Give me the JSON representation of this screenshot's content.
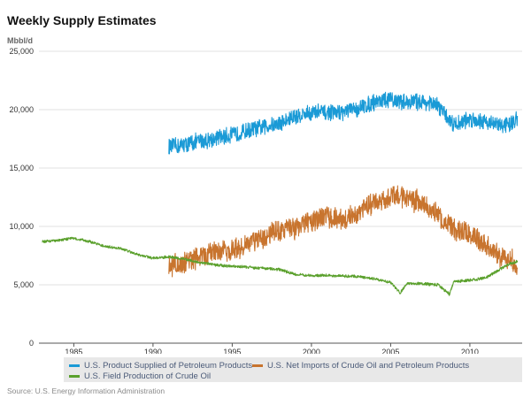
{
  "chart_data": {
    "type": "line",
    "title": "Weekly Supply Estimates",
    "ylabel": "Mbbl/d",
    "xlabel": "",
    "xlim": [
      1982.8,
      2013.3
    ],
    "ylim": [
      0,
      25000
    ],
    "x_ticks": [
      1985,
      1990,
      1995,
      2000,
      2005,
      2010
    ],
    "x_tick_labels": [
      "1985",
      "1990",
      "1995",
      "2000",
      "2005",
      "2010"
    ],
    "y_ticks": [
      0,
      5000,
      10000,
      15000,
      20000,
      25000
    ],
    "y_tick_labels": [
      "0",
      "5,000",
      "10,000",
      "15,000",
      "20,000",
      "25,000"
    ],
    "grid": true,
    "legend_position": "bottom",
    "source": "Source: U.S. Energy Information Administration",
    "series": [
      {
        "name": "U.S. Product Supplied of Petroleum Products",
        "color": "#1a9ad6",
        "noise": 650,
        "x": [
          1991.0,
          1992.0,
          1993.0,
          1994.0,
          1995.0,
          1996.0,
          1997.0,
          1998.0,
          1999.0,
          2000.0,
          2001.0,
          2002.0,
          2003.0,
          2004.0,
          2005.0,
          2006.0,
          2007.0,
          2008.0,
          2008.5,
          2009.0,
          2010.0,
          2011.0,
          2012.0,
          2012.5,
          2013.0
        ],
        "y": [
          16800,
          17000,
          17300,
          17600,
          17800,
          18200,
          18500,
          18800,
          19400,
          19800,
          19700,
          19800,
          20100,
          20700,
          20800,
          20700,
          20700,
          20300,
          19500,
          18700,
          19200,
          19000,
          18600,
          18800,
          19100
        ]
      },
      {
        "name": "U.S. Net Imports of Crude Oil and Petroleum Products",
        "color": "#c8742e",
        "noise": 850,
        "x": [
          1991.0,
          1992.0,
          1993.0,
          1994.0,
          1995.0,
          1996.0,
          1997.0,
          1998.0,
          1999.0,
          2000.0,
          2001.0,
          2002.0,
          2003.0,
          2004.0,
          2005.0,
          2006.0,
          2007.0,
          2008.0,
          2009.0,
          2010.0,
          2011.0,
          2012.0,
          2012.5,
          2013.0
        ],
        "y": [
          6500,
          6800,
          7400,
          8000,
          7900,
          8500,
          9100,
          9700,
          9900,
          10400,
          10900,
          10500,
          11200,
          12100,
          12500,
          12400,
          12000,
          11100,
          9700,
          9400,
          8400,
          7400,
          7200,
          6600
        ]
      },
      {
        "name": "U.S. Field Production of Crude Oil",
        "color": "#5aa02c",
        "noise": 110,
        "x": [
          1983.0,
          1984.0,
          1985.0,
          1986.0,
          1987.0,
          1988.0,
          1989.0,
          1990.0,
          1991.0,
          1992.0,
          1993.0,
          1994.0,
          1995.0,
          1996.0,
          1997.0,
          1998.0,
          1999.0,
          2000.0,
          2001.0,
          2002.0,
          2003.0,
          2004.0,
          2005.0,
          2005.6,
          2006.0,
          2007.0,
          2008.0,
          2008.7,
          2009.0,
          2010.0,
          2011.0,
          2012.0,
          2012.5,
          2013.0
        ],
        "y": [
          8700,
          8800,
          9000,
          8700,
          8300,
          8100,
          7600,
          7300,
          7400,
          7200,
          6900,
          6700,
          6600,
          6500,
          6400,
          6300,
          5900,
          5800,
          5800,
          5750,
          5700,
          5500,
          5200,
          4300,
          5100,
          5100,
          5000,
          4200,
          5300,
          5400,
          5600,
          6400,
          6800,
          7000
        ]
      }
    ]
  }
}
